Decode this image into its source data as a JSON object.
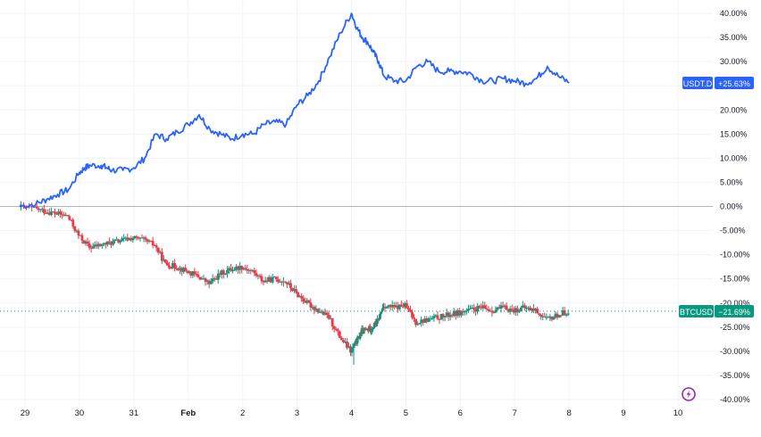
{
  "chart_data": {
    "type": "line",
    "title": "",
    "xlabel": "",
    "ylabel": "",
    "ylim": [
      -40,
      40
    ],
    "y_ticks": [
      40,
      35,
      30,
      25,
      20,
      15,
      10,
      5,
      0,
      -5,
      -10,
      -15,
      -20,
      -25,
      -30,
      -35,
      -40
    ],
    "y_tick_labels": [
      "40.00%",
      "35.00%",
      "30.00%",
      "25.00%",
      "20.00%",
      "15.00%",
      "10.00%",
      "5.00%",
      "0.00%",
      "-5.00%",
      "-10.00%",
      "-15.00%",
      "-20.00%",
      "-25.00%",
      "-30.00%",
      "-35.00%",
      "-40.00%"
    ],
    "x_ticks": [
      0,
      1,
      2,
      3,
      4,
      5,
      6,
      7,
      8,
      9,
      10,
      11,
      12
    ],
    "x_tick_labels": [
      "29",
      "30",
      "31",
      "Feb",
      "2",
      "3",
      "4",
      "5",
      "6",
      "7",
      "8",
      "9",
      "10"
    ],
    "xlim": [
      -0.1,
      12.6
    ],
    "grid": true,
    "series": [
      {
        "name": "USDT.D",
        "label": "USDT.D",
        "last_value_label": "+25.63%",
        "color": "#2962ff",
        "kind": "line",
        "x": [
          -0.1,
          0.2,
          0.4,
          0.6,
          0.8,
          1.0,
          1.1,
          1.2,
          1.4,
          1.5,
          1.6,
          1.8,
          2.0,
          2.2,
          2.4,
          2.6,
          2.8,
          3.0,
          3.2,
          3.4,
          3.6,
          3.8,
          4.0,
          4.2,
          4.4,
          4.6,
          4.8,
          5.0,
          5.2,
          5.4,
          5.6,
          5.8,
          6.0,
          6.1,
          6.2,
          6.3,
          6.4,
          6.5,
          6.6,
          6.8,
          7.0,
          7.2,
          7.4,
          7.6,
          7.8,
          8.0,
          8.2,
          8.4,
          8.6,
          8.8,
          9.0,
          9.2,
          9.4,
          9.6,
          9.8,
          10.0
        ],
        "values": [
          0.0,
          0.5,
          1.5,
          2.5,
          3.5,
          7.0,
          8.0,
          8.5,
          8.5,
          8.0,
          7.5,
          7.5,
          8.0,
          10.0,
          15.0,
          14.0,
          15.5,
          17.0,
          19.0,
          16.0,
          15.0,
          14.0,
          15.0,
          15.0,
          17.0,
          17.5,
          17.0,
          21.0,
          23.0,
          26.0,
          31.0,
          36.0,
          40.0,
          37.0,
          35.0,
          34.0,
          32.0,
          30.0,
          27.0,
          26.0,
          26.0,
          29.0,
          30.0,
          28.0,
          28.0,
          28.0,
          27.5,
          26.0,
          26.0,
          26.5,
          26.0,
          25.5,
          26.5,
          29.0,
          27.0,
          25.63
        ]
      },
      {
        "name": "BTCUSD",
        "label": "BTCUSD",
        "last_value_label": "−21.69%",
        "up_color": "#089981",
        "down_color": "#f23645",
        "kind": "candlestick",
        "x": [
          -0.1,
          0.2,
          0.4,
          0.6,
          0.8,
          1.0,
          1.2,
          1.4,
          1.6,
          1.8,
          2.0,
          2.2,
          2.4,
          2.6,
          2.8,
          3.0,
          3.2,
          3.4,
          3.6,
          3.8,
          4.0,
          4.2,
          4.4,
          4.6,
          4.8,
          5.0,
          5.2,
          5.4,
          5.6,
          5.8,
          6.0,
          6.1,
          6.2,
          6.3,
          6.4,
          6.5,
          6.6,
          6.8,
          7.0,
          7.2,
          7.4,
          7.6,
          7.8,
          8.0,
          8.2,
          8.4,
          8.6,
          8.8,
          9.0,
          9.2,
          9.4,
          9.6,
          9.8,
          10.0
        ],
        "values": [
          0.0,
          -0.5,
          -1.0,
          -1.5,
          -2.0,
          -6.0,
          -8.5,
          -8.0,
          -7.5,
          -7.0,
          -6.5,
          -7.0,
          -8.0,
          -12.0,
          -12.5,
          -13.5,
          -14.5,
          -16.0,
          -14.0,
          -13.0,
          -12.5,
          -13.5,
          -15.5,
          -15.0,
          -15.5,
          -18.0,
          -20.0,
          -21.5,
          -23.0,
          -27.0,
          -30.0,
          -28.0,
          -26.0,
          -25.5,
          -25.0,
          -23.5,
          -20.5,
          -21.0,
          -20.5,
          -24.0,
          -23.5,
          -23.0,
          -22.5,
          -22.0,
          -21.5,
          -21.0,
          -21.5,
          -21.0,
          -21.5,
          -21.0,
          -21.5,
          -23.5,
          -22.5,
          -21.69
        ]
      }
    ],
    "reference_line": 0
  },
  "watermark": {
    "icon": "bolt-icon",
    "color": "#9c27b0"
  }
}
